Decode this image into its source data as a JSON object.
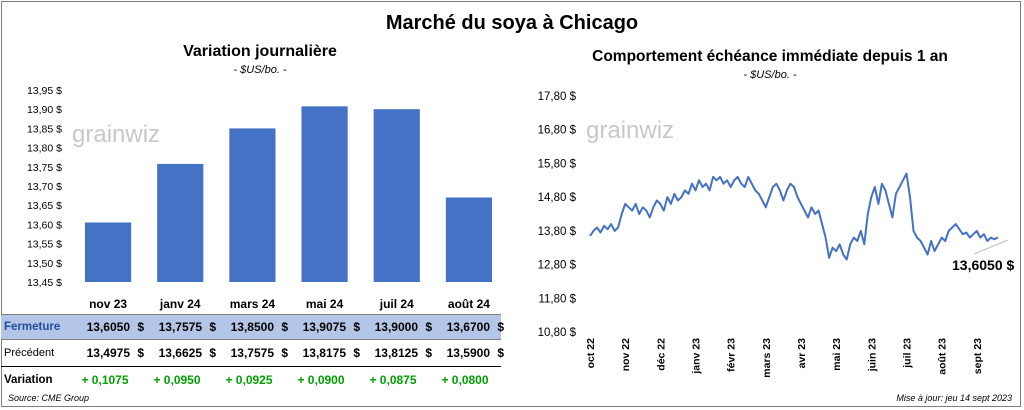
{
  "title": "Marché du soya à Chicago",
  "left": {
    "title": "Variation journalière",
    "subtitle": "- $US/bo. -"
  },
  "right": {
    "title": "Comportement échéance immédiate depuis 1 an",
    "subtitle": "- $US/bo. -",
    "callout": "13,6050 $"
  },
  "watermark": "grainwiz",
  "table": {
    "rows": [
      {
        "label": "Fermeture",
        "values": [
          "13,6050",
          "13,7575",
          "13,8500",
          "13,9075",
          "13,9000",
          "13,6700"
        ],
        "unit": "$"
      },
      {
        "label": "Précédent",
        "values": [
          "13,4975",
          "13,6625",
          "13,7575",
          "13,8175",
          "13,8125",
          "13,5900"
        ],
        "unit": "$"
      },
      {
        "label": "Variation",
        "values": [
          "+ 0,1075",
          "+ 0,0950",
          "+ 0,0925",
          "+ 0,0900",
          "+ 0,0875",
          "+ 0,0800"
        ],
        "unit": ""
      }
    ]
  },
  "footer": {
    "source": "Source: CME Group",
    "updated": "Mise à jour: jeu 14 sept 2023"
  },
  "colors": {
    "bar": "#4472c4",
    "line": "#4472c4",
    "table_header": "#b4c6e7",
    "positive": "#00a000"
  },
  "chart_data": [
    {
      "type": "bar",
      "title": "Variation journalière",
      "categories": [
        "nov 23",
        "janv 24",
        "mars 24",
        "mai 24",
        "juil 24",
        "août 24"
      ],
      "values": [
        13.605,
        13.7575,
        13.85,
        13.9075,
        13.9,
        13.67
      ],
      "ylim": [
        13.45,
        13.95
      ],
      "yticks": [
        "13,45 $",
        "13,50 $",
        "13,55 $",
        "13,60 $",
        "13,65 $",
        "13,70 $",
        "13,75 $",
        "13,80 $",
        "13,85 $",
        "13,90 $",
        "13,95 $"
      ],
      "grid": false
    },
    {
      "type": "line",
      "title": "Comportement échéance immédiate depuis 1 an",
      "ylim": [
        10.8,
        17.8
      ],
      "yticks": [
        "10,80 $",
        "11,80 $",
        "12,80 $",
        "13,80 $",
        "14,80 $",
        "15,80 $",
        "16,80 $",
        "17,80 $"
      ],
      "xticks": [
        "oct 22",
        "nov 22",
        "déc 22",
        "janv 23",
        "févr 23",
        "mars 23",
        "avr 23",
        "mai 23",
        "juin 23",
        "juil 23",
        "août 23",
        "sept 23"
      ],
      "series": [
        {
          "x": [
            0,
            0.1,
            0.2,
            0.3,
            0.4,
            0.5,
            0.6,
            0.7,
            0.8,
            0.9,
            1.0,
            1.1,
            1.2,
            1.3,
            1.4,
            1.5,
            1.6,
            1.7,
            1.8,
            1.9,
            2.0,
            2.1,
            2.2,
            2.3,
            2.4,
            2.5,
            2.6,
            2.7,
            2.8,
            2.9,
            3.0,
            3.1,
            3.2,
            3.3,
            3.4,
            3.5,
            3.6,
            3.7,
            3.8,
            3.9,
            4.0,
            4.1,
            4.2,
            4.3,
            4.4,
            4.5,
            4.6,
            4.7,
            4.8,
            4.9,
            5.0,
            5.1,
            5.2,
            5.3,
            5.4,
            5.5,
            5.6,
            5.7,
            5.8,
            5.9,
            6.0,
            6.1,
            6.2,
            6.3,
            6.4,
            6.5,
            6.6,
            6.7,
            6.8,
            6.9,
            7.0,
            7.1,
            7.2,
            7.3,
            7.4,
            7.5,
            7.6,
            7.7,
            7.8,
            7.9,
            8.0,
            8.1,
            8.2,
            8.3,
            8.4,
            8.5,
            8.6,
            8.7,
            8.8,
            8.9,
            9.0,
            9.1,
            9.2,
            9.3,
            9.4,
            9.5,
            9.6,
            9.7,
            9.8,
            9.9,
            10.0,
            10.1,
            10.2,
            10.3,
            10.4,
            10.5,
            10.6,
            10.7,
            10.8,
            10.9,
            11.0,
            11.1,
            11.2,
            11.3,
            11.4,
            11.5,
            11.6
          ],
          "y": [
            13.65,
            13.8,
            13.9,
            13.75,
            13.95,
            13.85,
            14.0,
            13.8,
            13.9,
            14.3,
            14.6,
            14.5,
            14.4,
            14.6,
            14.3,
            14.5,
            14.4,
            14.2,
            14.5,
            14.7,
            14.6,
            14.4,
            14.8,
            14.6,
            14.9,
            14.7,
            14.8,
            15.0,
            14.9,
            15.2,
            15.0,
            15.3,
            15.1,
            15.2,
            15.0,
            15.4,
            15.3,
            15.4,
            15.2,
            15.3,
            15.1,
            15.3,
            15.4,
            15.2,
            15.1,
            15.4,
            15.2,
            15.0,
            14.9,
            14.7,
            14.5,
            14.8,
            15.1,
            15.2,
            15.0,
            14.7,
            15.0,
            15.2,
            15.1,
            14.8,
            14.6,
            14.4,
            14.2,
            14.5,
            14.3,
            14.4,
            14.0,
            13.6,
            13.0,
            13.3,
            13.2,
            13.4,
            13.1,
            12.95,
            13.4,
            13.6,
            13.5,
            13.8,
            13.4,
            14.3,
            14.8,
            15.1,
            14.6,
            15.2,
            15.0,
            14.6,
            14.2,
            14.9,
            15.1,
            15.3,
            15.5,
            14.8,
            13.8,
            13.6,
            13.5,
            13.3,
            13.1,
            13.5,
            13.2,
            13.4,
            13.6,
            13.5,
            13.8,
            13.9,
            14.0,
            13.85,
            13.7,
            13.75,
            13.6,
            13.7,
            13.8,
            13.6,
            13.7,
            13.5,
            13.6,
            13.55,
            13.605
          ]
        }
      ],
      "grid": false
    }
  ]
}
